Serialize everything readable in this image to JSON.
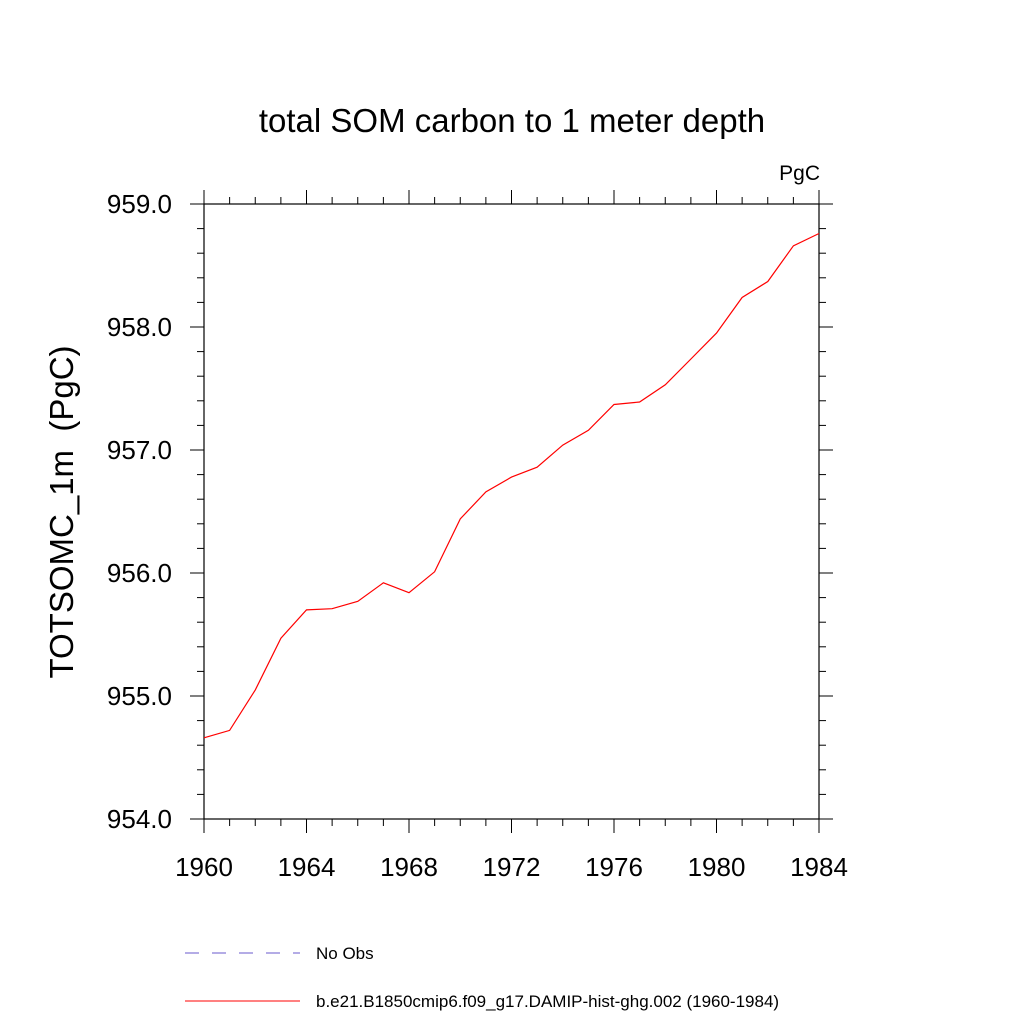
{
  "chart_data": {
    "type": "line",
    "title": "total SOM carbon to 1 meter depth",
    "units_label": "PgC",
    "ylabel": "TOTSOMC_1m  (PgC)",
    "xlabel": "",
    "xlim": [
      1960,
      1984
    ],
    "ylim": [
      954.0,
      959.0
    ],
    "x_ticks": [
      "1960",
      "1964",
      "1968",
      "1972",
      "1976",
      "1980",
      "1984"
    ],
    "y_ticks": [
      "954.0",
      "955.0",
      "956.0",
      "957.0",
      "958.0",
      "959.0"
    ],
    "x_tick_values": [
      1960,
      1964,
      1968,
      1972,
      1976,
      1980,
      1984
    ],
    "y_tick_values": [
      954.0,
      955.0,
      956.0,
      957.0,
      958.0,
      959.0
    ],
    "grid": false,
    "legend_position": "bottom",
    "series": [
      {
        "name": "b.e21.B1850cmip6.f09_g17.DAMIP-hist-ghg.002 (1960-1984)",
        "color": "#ff0000",
        "style": "solid",
        "x": [
          1960,
          1961,
          1962,
          1963,
          1964,
          1965,
          1966,
          1967,
          1968,
          1969,
          1970,
          1971,
          1972,
          1973,
          1974,
          1975,
          1976,
          1977,
          1978,
          1979,
          1980,
          1981,
          1982,
          1983,
          1984
        ],
        "y": [
          954.66,
          954.72,
          955.05,
          955.47,
          955.7,
          955.71,
          955.77,
          955.92,
          955.84,
          956.01,
          956.44,
          956.66,
          956.78,
          956.86,
          957.04,
          957.16,
          957.37,
          957.39,
          957.53,
          957.74,
          957.95,
          958.24,
          958.37,
          958.66,
          958.76
        ]
      }
    ],
    "legend": [
      {
        "label": "No Obs",
        "color": "#6a5acd",
        "style": "dashed"
      },
      {
        "label": "b.e21.B1850cmip6.f09_g17.DAMIP-hist-ghg.002 (1960-1984)",
        "color": "#ff0000",
        "style": "solid"
      }
    ]
  }
}
